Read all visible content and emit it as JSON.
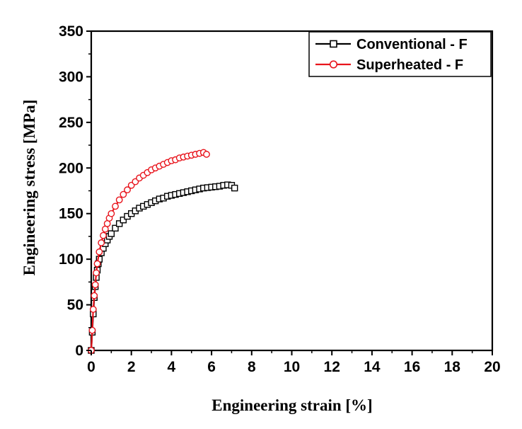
{
  "chart_data": {
    "type": "line",
    "title": "",
    "xlabel": "Engineering strain [%]",
    "ylabel": "Engineering stress [MPa]",
    "xlim": [
      0,
      20
    ],
    "ylim": [
      0,
      350
    ],
    "xticks": [
      "0",
      "2",
      "4",
      "6",
      "8",
      "10",
      "12",
      "14",
      "16",
      "18",
      "20"
    ],
    "yticks": [
      "0",
      "50",
      "100",
      "150",
      "200",
      "250",
      "300",
      "350"
    ],
    "grid": false,
    "legend_position": "top-right",
    "series": [
      {
        "name": "Conventional - F",
        "color": "#000000",
        "marker": "square",
        "x": [
          0,
          0.05,
          0.1,
          0.15,
          0.2,
          0.25,
          0.3,
          0.35,
          0.4,
          0.5,
          0.6,
          0.7,
          0.8,
          0.9,
          1.0,
          1.2,
          1.4,
          1.6,
          1.8,
          2.0,
          2.2,
          2.4,
          2.6,
          2.8,
          3.0,
          3.2,
          3.4,
          3.6,
          3.8,
          4.0,
          4.2,
          4.4,
          4.6,
          4.8,
          5.0,
          5.2,
          5.4,
          5.6,
          5.8,
          6.0,
          6.2,
          6.4,
          6.6,
          6.8,
          7.0,
          7.15
        ],
        "y": [
          0,
          20,
          40,
          58,
          70,
          80,
          88,
          95,
          100,
          107,
          112,
          117,
          121,
          125,
          128,
          134,
          139,
          143,
          147,
          150,
          153,
          156,
          158,
          160,
          162,
          164,
          166,
          167,
          169,
          170,
          171,
          172,
          173,
          174,
          175,
          176,
          177,
          178,
          178.5,
          179,
          179.5,
          180,
          181,
          181.5,
          181,
          178
        ]
      },
      {
        "name": "Superheated - F",
        "color": "#e8141c",
        "marker": "circle",
        "x": [
          0,
          0.05,
          0.1,
          0.15,
          0.2,
          0.25,
          0.3,
          0.4,
          0.5,
          0.6,
          0.7,
          0.8,
          0.9,
          1.0,
          1.2,
          1.4,
          1.6,
          1.8,
          2.0,
          2.2,
          2.4,
          2.6,
          2.8,
          3.0,
          3.2,
          3.4,
          3.6,
          3.8,
          4.0,
          4.2,
          4.4,
          4.6,
          4.8,
          5.0,
          5.2,
          5.4,
          5.6,
          5.75
        ],
        "y": [
          0,
          22,
          45,
          60,
          72,
          85,
          95,
          108,
          118,
          126,
          133,
          139,
          145,
          150,
          158,
          165,
          171,
          176,
          181,
          185,
          189,
          192,
          195,
          198,
          200,
          202,
          204,
          206,
          208,
          209,
          211,
          212,
          213,
          214,
          215,
          216,
          217,
          215
        ]
      }
    ]
  }
}
